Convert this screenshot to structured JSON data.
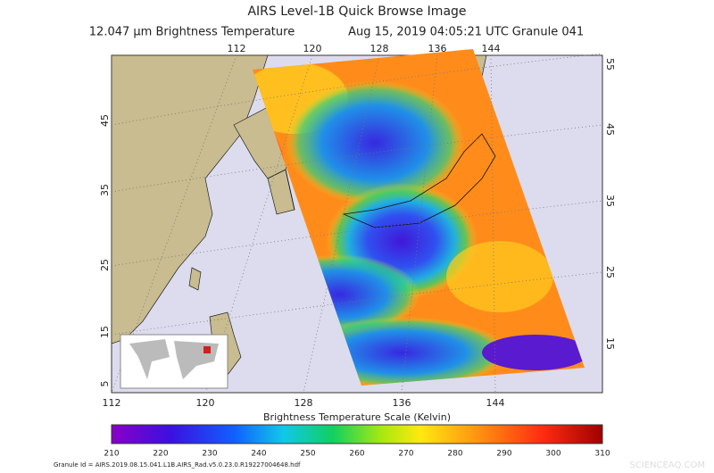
{
  "header": {
    "title": "AIRS Level-1B Quick Browse Image",
    "subtitle_parts": [
      "12.047 μm Brightness Temperature",
      "Aug 15, 2019 04:05:21 UTC",
      "Granule 041"
    ]
  },
  "map": {
    "top_longitudes": [
      "112",
      "120",
      "128",
      "136",
      "144"
    ],
    "bottom_longitudes": [
      "112",
      "120",
      "128",
      "136",
      "144"
    ],
    "left_latitudes": [
      "45",
      "35",
      "25",
      "15",
      "5"
    ],
    "right_latitudes": [
      "55",
      "45",
      "35",
      "25",
      "15"
    ]
  },
  "colorbar": {
    "title": "Brightness Temperature Scale (Kelvin)",
    "ticks": [
      210,
      220,
      230,
      240,
      250,
      260,
      270,
      280,
      290,
      300,
      310
    ]
  },
  "footer": {
    "granule_id": "Granule Id = AIRS.2019.08.15.041.L1B.AIRS_Rad.v5.0.23.0.R19227004648.hdf",
    "watermark": "SCIENCEAQ.COM"
  }
}
